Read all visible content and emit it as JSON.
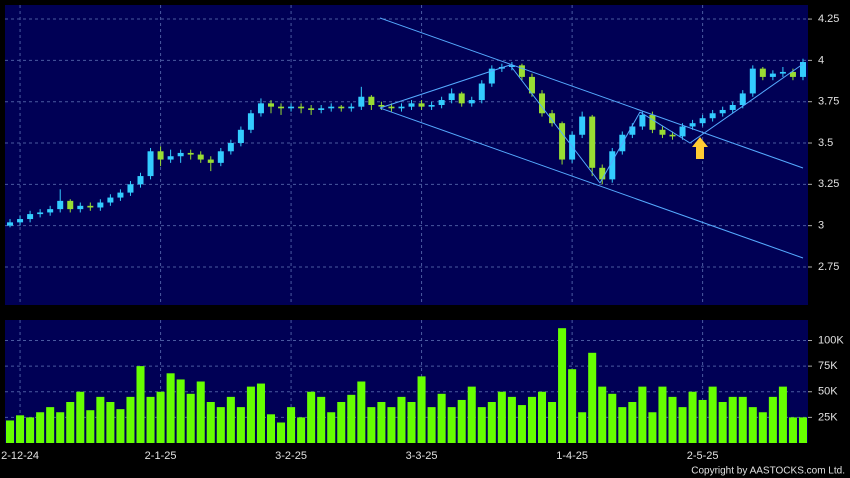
{
  "chart_data": [
    {
      "type": "candlestick",
      "categories": [
        null,
        "2-12-24",
        null,
        null,
        null,
        null,
        null,
        null,
        null,
        null,
        null,
        null,
        null,
        null,
        null,
        "2-1-25",
        null,
        null,
        null,
        null,
        null,
        null,
        null,
        null,
        null,
        null,
        null,
        null,
        "3-2-25",
        null,
        null,
        null,
        null,
        null,
        null,
        null,
        null,
        null,
        null,
        null,
        null,
        "3-3-25",
        null,
        null,
        null,
        null,
        null,
        null,
        null,
        null,
        null,
        null,
        null,
        null,
        null,
        null,
        "1-4-25",
        null,
        null,
        null,
        null,
        null,
        null,
        null,
        null,
        null,
        null,
        null,
        null,
        "2-5-25",
        null,
        null,
        null,
        null,
        null,
        null,
        null,
        null,
        null,
        null
      ],
      "open": [
        3.0,
        3.02,
        3.04,
        3.07,
        3.08,
        3.1,
        3.15,
        3.1,
        3.12,
        3.11,
        3.14,
        3.17,
        3.2,
        3.25,
        3.3,
        3.45,
        3.4,
        3.42,
        3.44,
        3.43,
        3.4,
        3.38,
        3.45,
        3.5,
        3.58,
        3.68,
        3.74,
        3.72,
        3.71,
        3.72,
        3.71,
        3.7,
        3.71,
        3.72,
        3.71,
        3.72,
        3.78,
        3.73,
        3.72,
        3.71,
        3.72,
        3.74,
        3.72,
        3.73,
        3.76,
        3.8,
        3.74,
        3.76,
        3.86,
        3.95,
        3.96,
        3.97,
        3.9,
        3.8,
        3.68,
        3.62,
        3.4,
        3.55,
        3.66,
        3.35,
        3.28,
        3.45,
        3.55,
        3.6,
        3.67,
        3.58,
        3.55,
        3.54,
        3.6,
        3.62,
        3.65,
        3.68,
        3.7,
        3.73,
        3.8,
        3.95,
        3.9,
        3.92,
        3.93,
        3.9
      ],
      "high": [
        3.04,
        3.06,
        3.09,
        3.1,
        3.12,
        3.22,
        3.16,
        3.14,
        3.14,
        3.16,
        3.19,
        3.22,
        3.27,
        3.32,
        3.47,
        3.48,
        3.46,
        3.46,
        3.46,
        3.45,
        3.42,
        3.47,
        3.52,
        3.6,
        3.7,
        3.77,
        3.76,
        3.74,
        3.74,
        3.74,
        3.73,
        3.73,
        3.74,
        3.73,
        3.74,
        3.84,
        3.79,
        3.75,
        3.74,
        3.74,
        3.76,
        3.76,
        3.75,
        3.78,
        3.83,
        3.81,
        3.78,
        3.88,
        3.97,
        3.98,
        3.99,
        3.98,
        3.92,
        3.82,
        3.7,
        3.63,
        3.57,
        3.69,
        3.67,
        3.37,
        3.47,
        3.57,
        3.62,
        3.69,
        3.69,
        3.6,
        3.57,
        3.62,
        3.64,
        3.67,
        3.7,
        3.72,
        3.75,
        3.82,
        3.97,
        3.96,
        3.94,
        3.96,
        3.95,
        4.01
      ],
      "low": [
        2.99,
        3.0,
        3.02,
        3.05,
        3.06,
        3.08,
        3.08,
        3.08,
        3.09,
        3.09,
        3.12,
        3.15,
        3.18,
        3.23,
        3.28,
        3.36,
        3.38,
        3.38,
        3.4,
        3.38,
        3.33,
        3.36,
        3.43,
        3.48,
        3.56,
        3.66,
        3.68,
        3.67,
        3.69,
        3.68,
        3.67,
        3.68,
        3.69,
        3.69,
        3.69,
        3.7,
        3.7,
        3.7,
        3.69,
        3.69,
        3.7,
        3.7,
        3.7,
        3.71,
        3.74,
        3.72,
        3.72,
        3.74,
        3.84,
        3.93,
        3.94,
        3.88,
        3.78,
        3.66,
        3.6,
        3.37,
        3.38,
        3.53,
        3.3,
        3.25,
        3.26,
        3.43,
        3.53,
        3.58,
        3.56,
        3.53,
        3.52,
        3.52,
        3.58,
        3.6,
        3.63,
        3.66,
        3.68,
        3.71,
        3.78,
        3.88,
        3.88,
        3.9,
        3.88,
        3.88
      ],
      "close": [
        3.02,
        3.04,
        3.07,
        3.08,
        3.1,
        3.15,
        3.1,
        3.12,
        3.11,
        3.14,
        3.17,
        3.2,
        3.25,
        3.3,
        3.45,
        3.4,
        3.42,
        3.44,
        3.43,
        3.4,
        3.38,
        3.45,
        3.5,
        3.58,
        3.68,
        3.74,
        3.72,
        3.71,
        3.72,
        3.71,
        3.7,
        3.71,
        3.72,
        3.71,
        3.72,
        3.78,
        3.73,
        3.72,
        3.71,
        3.72,
        3.74,
        3.72,
        3.73,
        3.76,
        3.8,
        3.74,
        3.76,
        3.86,
        3.95,
        3.96,
        3.97,
        3.9,
        3.8,
        3.68,
        3.62,
        3.4,
        3.55,
        3.66,
        3.35,
        3.28,
        3.45,
        3.55,
        3.6,
        3.67,
        3.58,
        3.55,
        3.54,
        3.6,
        3.62,
        3.65,
        3.68,
        3.7,
        3.73,
        3.8,
        3.95,
        3.9,
        3.92,
        3.93,
        3.9,
        3.99
      ],
      "up_color": "#33ccff",
      "down_color": "#99dd33",
      "ylim": [
        2.52,
        4.335
      ],
      "yticks": [
        4.25,
        4,
        3.75,
        3.5,
        3.25,
        3,
        2.75
      ],
      "grid": true
    },
    {
      "type": "bar",
      "values": [
        22000,
        27000,
        25000,
        30000,
        35000,
        30000,
        40000,
        50000,
        32000,
        45000,
        40000,
        33000,
        45000,
        75000,
        45000,
        50000,
        68000,
        62000,
        48000,
        60000,
        40000,
        35000,
        45000,
        35000,
        55000,
        58000,
        28000,
        20000,
        35000,
        25000,
        50000,
        45000,
        30000,
        40000,
        47000,
        60000,
        35000,
        40000,
        35000,
        45000,
        40000,
        65000,
        35000,
        48000,
        35000,
        42000,
        55000,
        35000,
        40000,
        50000,
        45000,
        37000,
        45000,
        50000,
        40000,
        112000,
        72000,
        30000,
        88000,
        55000,
        48000,
        35000,
        40000,
        55000,
        30000,
        55000,
        45000,
        35000,
        50000,
        42000,
        55000,
        40000,
        45000,
        45000,
        35000,
        30000,
        45000,
        55000,
        25000,
        25000
      ],
      "color": "#66ff00",
      "ylim": [
        0,
        120000
      ],
      "yticks": [
        {
          "value": 25000,
          "label": "25K"
        },
        {
          "value": 50000,
          "label": "50K"
        },
        {
          "value": 75000,
          "label": "75K"
        },
        {
          "value": 100000,
          "label": "100K"
        }
      ],
      "grid": true
    }
  ],
  "copyright": "Copyright by AASTOCKS.com Ltd."
}
